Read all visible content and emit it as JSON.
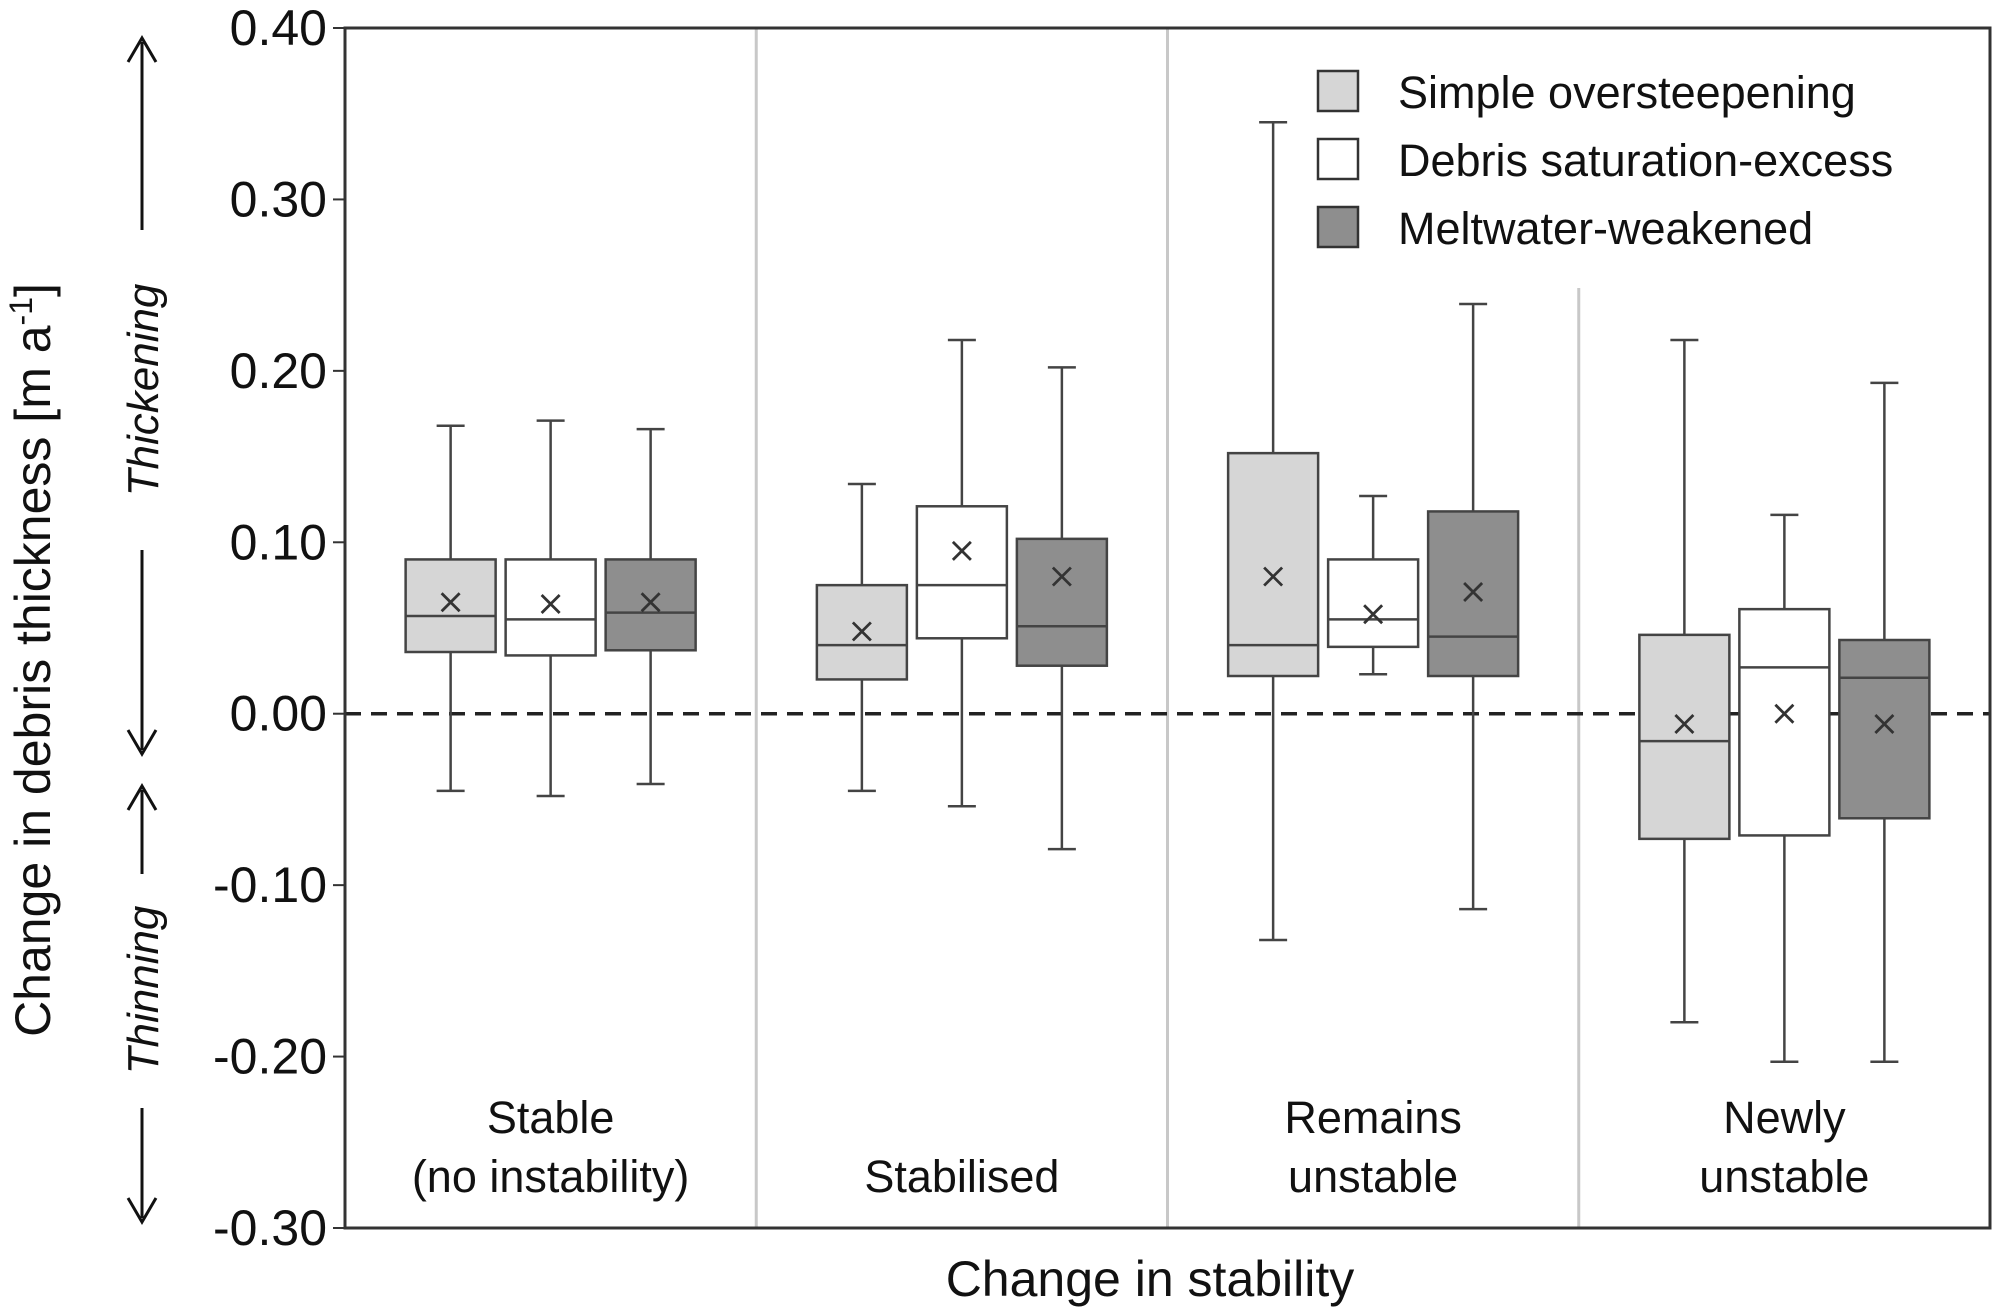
{
  "chart_data": {
    "type": "box",
    "title": "",
    "xlabel": "Change in stability",
    "ylabel": "Change in debris thickness [m a",
    "ylabel_superscript": "-1",
    "ylabel_end": "]",
    "direction_labels": {
      "up": "Thickening",
      "down": "Thinning"
    },
    "ylim": [
      -0.3,
      0.4
    ],
    "yticks": [
      "0.40",
      "0.30",
      "0.20",
      "0.10",
      "0.00",
      "-0.10",
      "-0.20",
      "-0.30"
    ],
    "reference_line": 0.0,
    "grid": false,
    "legend_position": "top-right",
    "categories": [
      {
        "label_lines": [
          "Stable",
          "(no instability)"
        ]
      },
      {
        "label_lines": [
          "Stabilised"
        ]
      },
      {
        "label_lines": [
          "Remains",
          "unstable"
        ]
      },
      {
        "label_lines": [
          "Newly",
          "unstable"
        ]
      }
    ],
    "series": [
      {
        "name": "Simple oversteepening",
        "color": "#d6d6d6",
        "boxes": [
          {
            "whisker_low": -0.045,
            "q1": 0.036,
            "median": 0.057,
            "q3": 0.09,
            "whisker_high": 0.168,
            "mean": 0.065
          },
          {
            "whisker_low": -0.045,
            "q1": 0.02,
            "median": 0.04,
            "q3": 0.075,
            "whisker_high": 0.134,
            "mean": 0.048
          },
          {
            "whisker_low": -0.132,
            "q1": 0.022,
            "median": 0.04,
            "q3": 0.152,
            "whisker_high": 0.345,
            "mean": 0.08
          },
          {
            "whisker_low": -0.18,
            "q1": -0.073,
            "median": -0.016,
            "q3": 0.046,
            "whisker_high": 0.218,
            "mean": -0.006
          }
        ]
      },
      {
        "name": "Debris saturation-excess",
        "color": "#ffffff",
        "boxes": [
          {
            "whisker_low": -0.048,
            "q1": 0.034,
            "median": 0.055,
            "q3": 0.09,
            "whisker_high": 0.171,
            "mean": 0.064
          },
          {
            "whisker_low": -0.054,
            "q1": 0.044,
            "median": 0.075,
            "q3": 0.121,
            "whisker_high": 0.218,
            "mean": 0.095
          },
          {
            "whisker_low": 0.023,
            "q1": 0.039,
            "median": 0.055,
            "q3": 0.09,
            "whisker_high": 0.127,
            "mean": 0.058
          },
          {
            "whisker_low": -0.203,
            "q1": -0.071,
            "median": 0.027,
            "q3": 0.061,
            "whisker_high": 0.116,
            "mean": 0.0
          }
        ]
      },
      {
        "name": "Meltwater-weakened",
        "color": "#8e8e8e",
        "boxes": [
          {
            "whisker_low": -0.041,
            "q1": 0.037,
            "median": 0.059,
            "q3": 0.09,
            "whisker_high": 0.166,
            "mean": 0.065
          },
          {
            "whisker_low": -0.079,
            "q1": 0.028,
            "median": 0.051,
            "q3": 0.102,
            "whisker_high": 0.202,
            "mean": 0.08
          },
          {
            "whisker_low": -0.114,
            "q1": 0.022,
            "median": 0.045,
            "q3": 0.118,
            "whisker_high": 0.239,
            "mean": 0.071
          },
          {
            "whisker_low": -0.203,
            "q1": -0.061,
            "median": 0.021,
            "q3": 0.043,
            "whisker_high": 0.193,
            "mean": -0.006
          }
        ]
      }
    ]
  }
}
